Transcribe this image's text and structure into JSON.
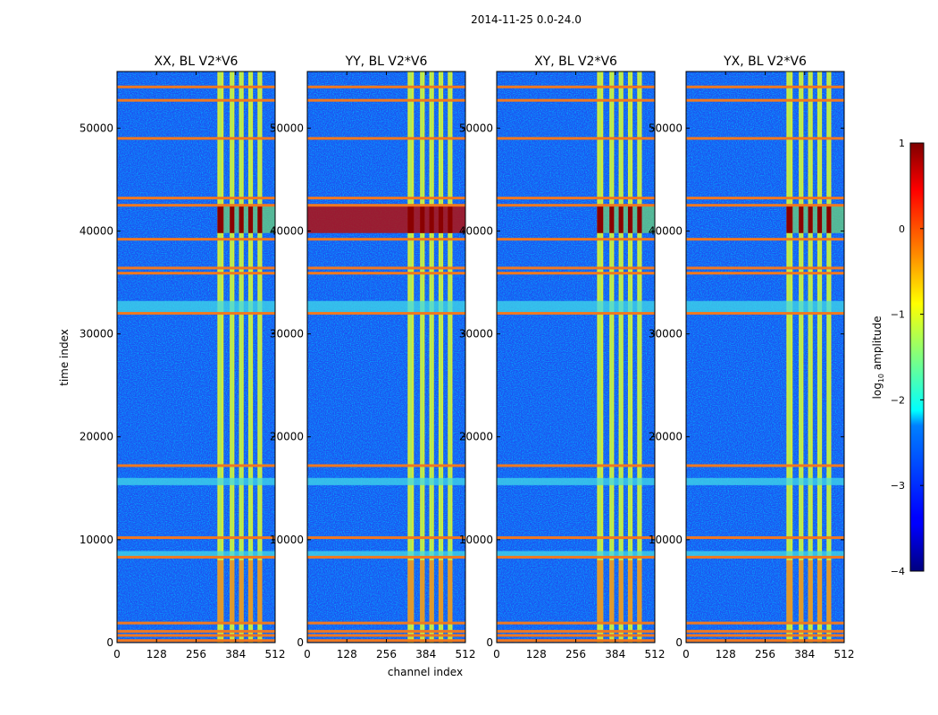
{
  "chart_data": {
    "type": "heatmap",
    "suptitle": "2014-11-25 0.0-24.0",
    "xlabel": "channel index",
    "ylabel": "time index",
    "xlim": [
      0,
      512
    ],
    "ylim": [
      0,
      55500
    ],
    "xticks": [
      0,
      128,
      256,
      384,
      512
    ],
    "yticks": [
      0,
      10000,
      20000,
      30000,
      40000,
      50000
    ],
    "panels": [
      {
        "title": "XX, BL V2*V6",
        "burst_note": "strong band near time 40000-42500 on channels 330-512"
      },
      {
        "title": "YY, BL V2*V6",
        "burst_note": "strong band near time 40000-42500 across channels 0-512"
      },
      {
        "title": "XY, BL V2*V6",
        "burst_note": "strong band near time 40000-42500 on channels 330-512"
      },
      {
        "title": "YX, BL V2*V6",
        "burst_note": "strong band near time 40000-42500 on channels 330-512"
      }
    ],
    "bright_channel_columns": [
      [
        325,
        345
      ],
      [
        365,
        380
      ],
      [
        395,
        410
      ],
      [
        425,
        440
      ],
      [
        455,
        470
      ]
    ],
    "flagged_time_rows": [
      200,
      700,
      1100,
      1900,
      8300,
      10200,
      17200,
      32000,
      35900,
      36400,
      39200,
      42500,
      43200,
      49000,
      52700,
      54000
    ],
    "colorbar": {
      "label": "log10 amplitude",
      "label_main": "log",
      "label_sub": "10",
      "label_tail": " amplitude",
      "range": [
        -4,
        1
      ],
      "ticks": [
        "1",
        "0",
        "−1",
        "−2",
        "−3",
        "−4"
      ],
      "tick_values": [
        1,
        0,
        -1,
        -2,
        -3,
        -4
      ],
      "colormap": "jet"
    }
  }
}
